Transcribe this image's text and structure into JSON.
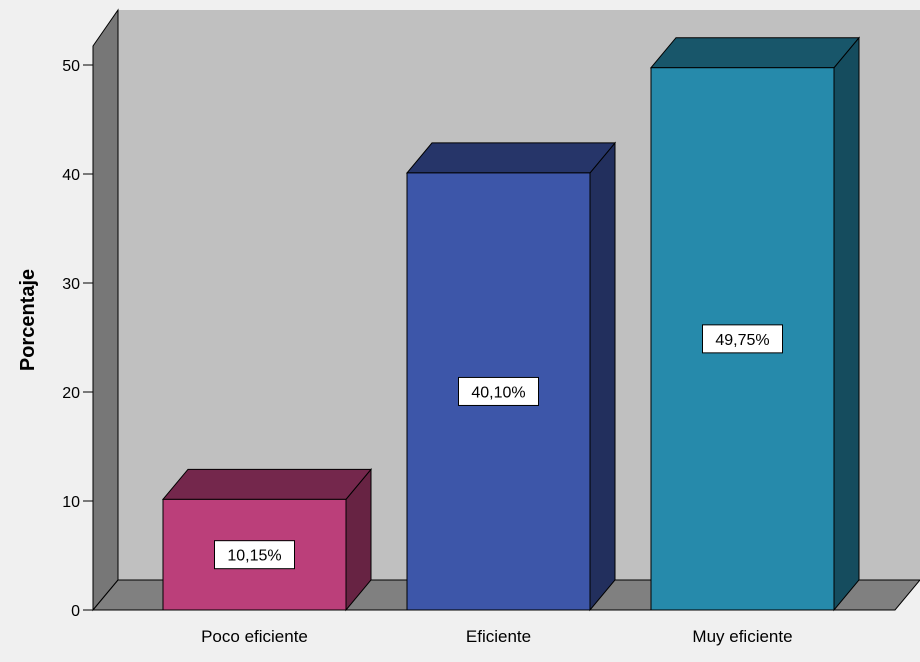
{
  "chart_data": {
    "type": "bar",
    "categories": [
      "Poco eficiente",
      "Eficiente",
      "Muy eficiente"
    ],
    "values": [
      10.15,
      40.1,
      49.75
    ],
    "data_labels": [
      "10,15%",
      "40,10%",
      "49,75%"
    ],
    "title": "",
    "xlabel": "",
    "ylabel": "Porcentaje",
    "ylim": [
      0,
      50
    ],
    "yticks": [
      0,
      10,
      20,
      30,
      40,
      50
    ],
    "grid": false,
    "style": "3d",
    "colors": [
      "#bb3f7a",
      "#3d56a9",
      "#268aab"
    ],
    "wall_color": "#c0c0c0",
    "floor_color": "#808080"
  }
}
